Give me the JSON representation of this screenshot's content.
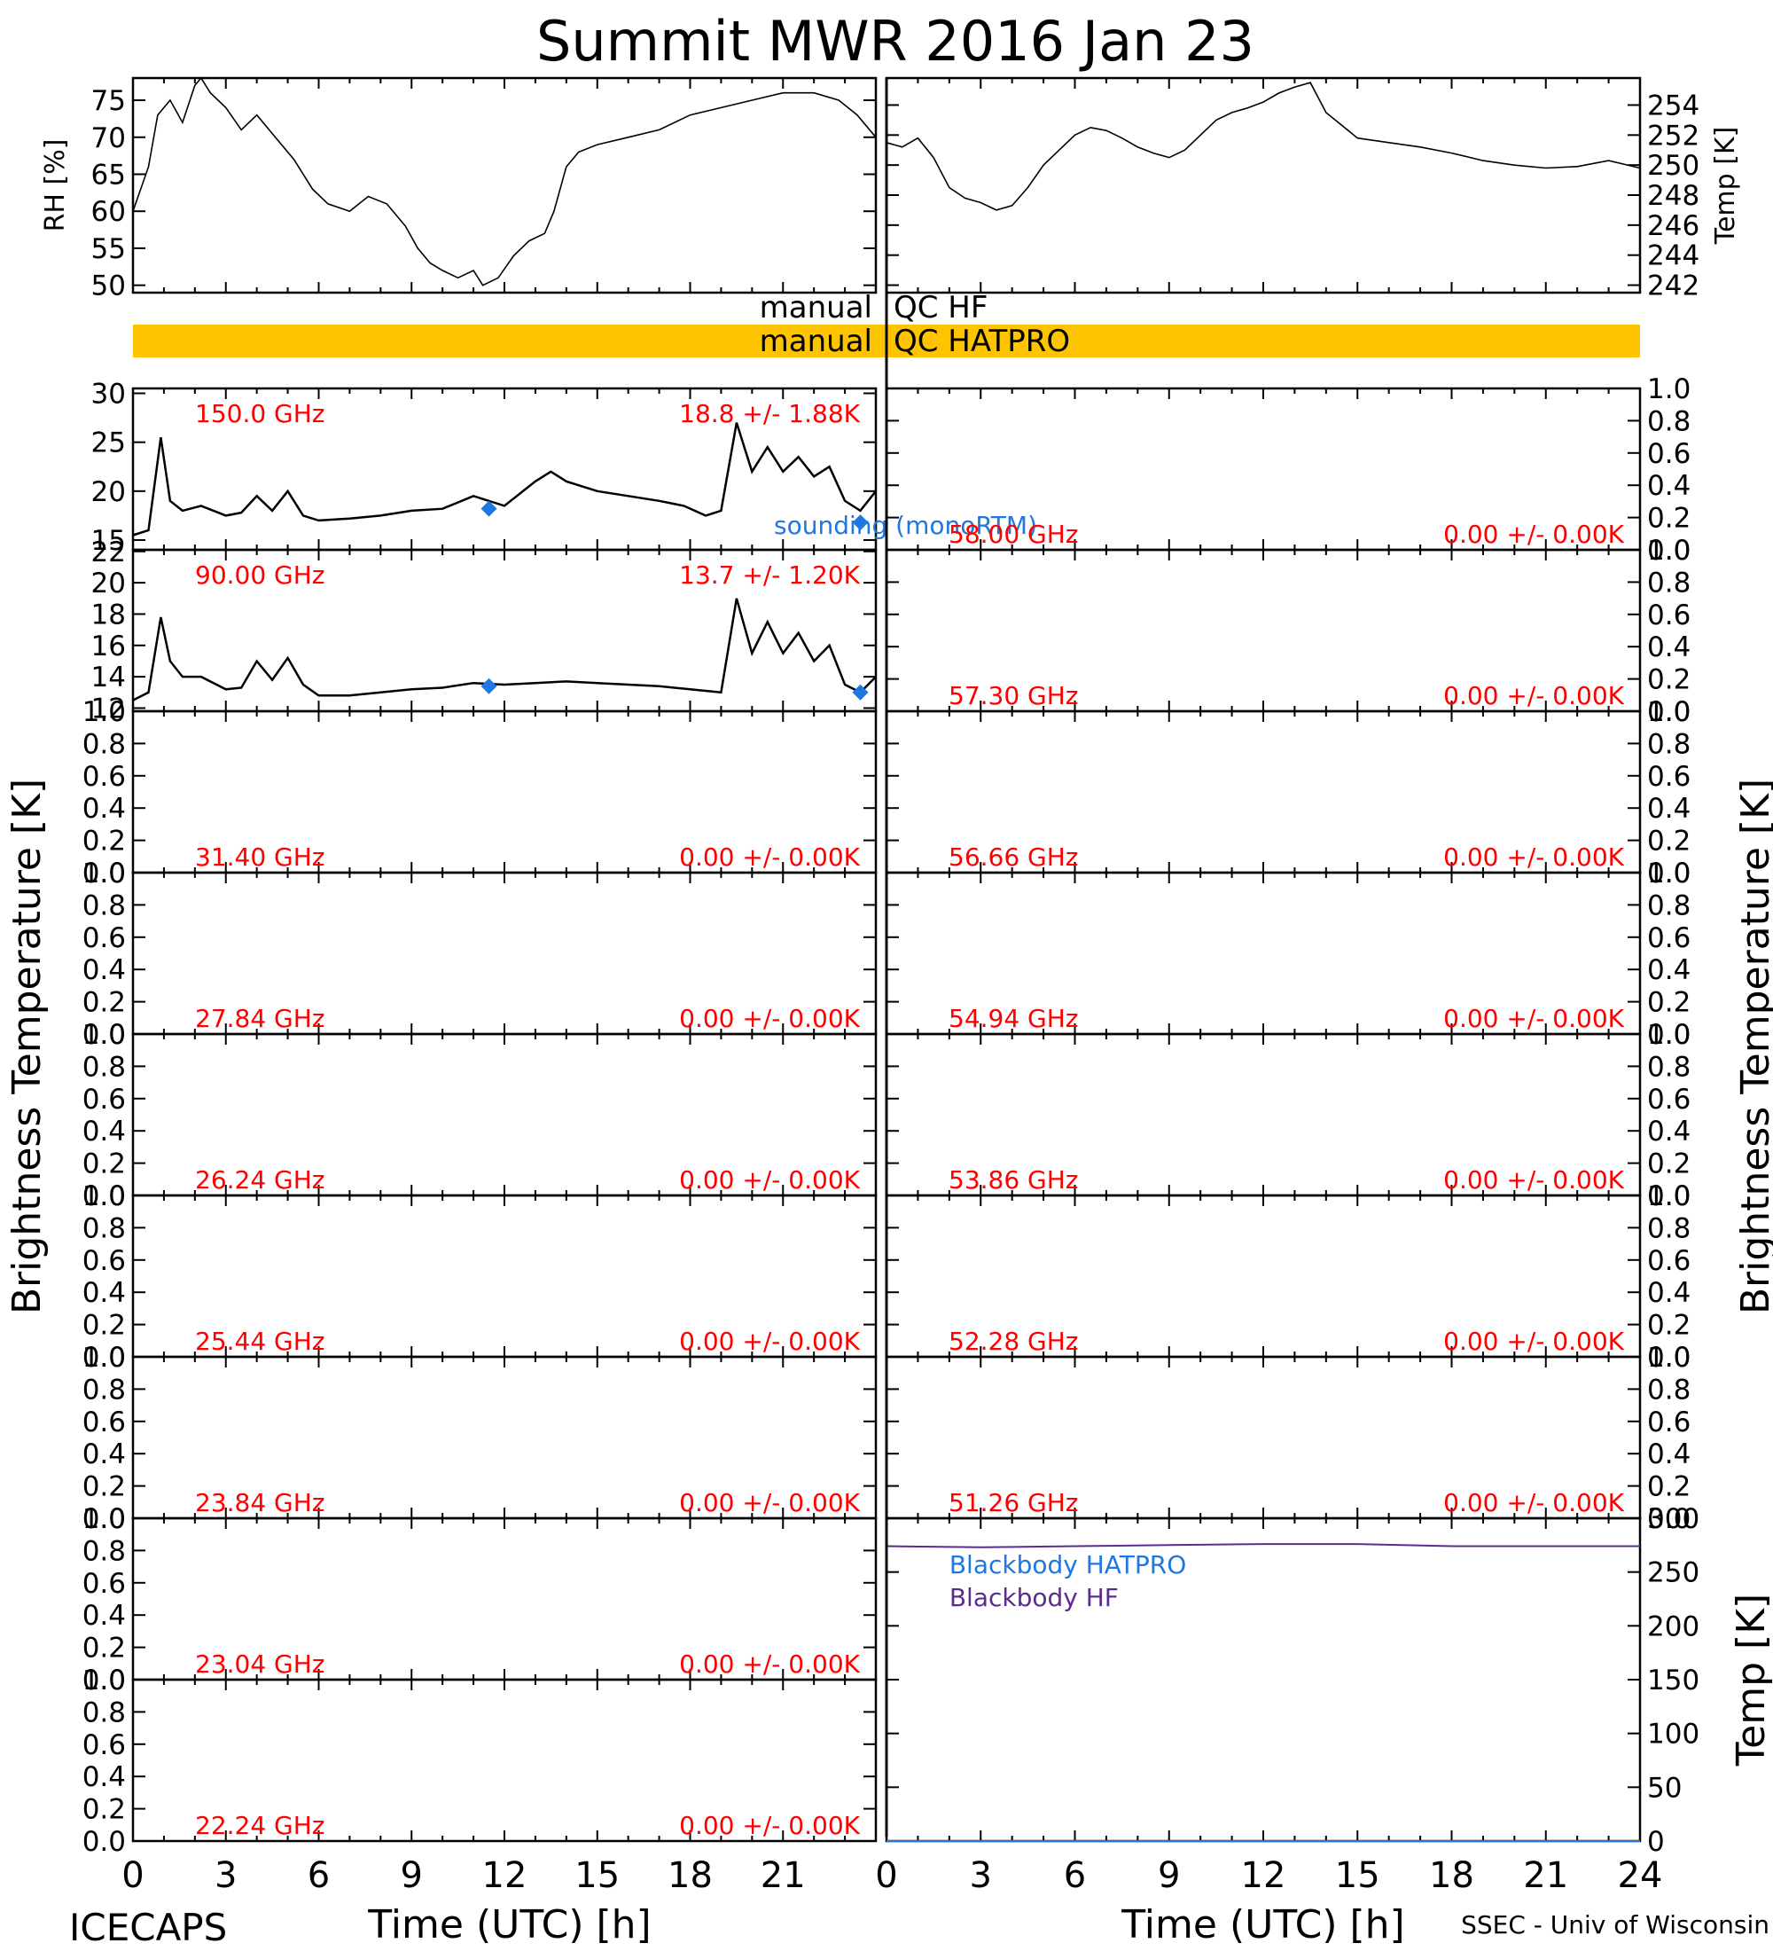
{
  "title": "Summit MWR 2016 Jan 23",
  "footer": {
    "left": "ICECAPS",
    "right": "SSEC - Univ of Wisconsin"
  },
  "xlabel": "Time (UTC) [h]",
  "left_ylabel": "Brightness Temperature [K]",
  "right_ylabel": "Brightness Temperature [K]",
  "qc": {
    "hf_left": "manual",
    "hf_right": "QC HF",
    "hatpro_left": "manual",
    "hatpro_right": "QC HATPRO",
    "hatpro_color": "#FFC400"
  },
  "colors": {
    "label": "#FF0000",
    "sounding": "#1F77E0",
    "bb_hatpro": "#1F77E0",
    "bb_hf": "#5B2C8F",
    "trace": "#000000"
  },
  "chart_data": [
    {
      "id": "rh",
      "type": "line",
      "ylabel": "RH [%]",
      "xlim": [
        0,
        24
      ],
      "ylim": [
        49,
        78
      ],
      "ticks": [
        50,
        55,
        60,
        65,
        70,
        75
      ],
      "x": [
        0,
        0.5,
        0.8,
        1.2,
        1.6,
        2.0,
        2.2,
        2.5,
        3.0,
        3.5,
        4.0,
        4.6,
        5.2,
        5.8,
        6.3,
        7.0,
        7.6,
        8.2,
        8.8,
        9.2,
        9.6,
        10.0,
        10.5,
        11.0,
        11.3,
        11.8,
        12.3,
        12.8,
        13.3,
        13.6,
        14.0,
        14.4,
        15.0,
        16.0,
        17.0,
        18.0,
        19.0,
        20.0,
        21.0,
        22.0,
        22.8,
        23.4,
        24.0
      ],
      "values": [
        60,
        66,
        73,
        75,
        72,
        77,
        78,
        76,
        74,
        71,
        73,
        70,
        67,
        63,
        61,
        60,
        62,
        61,
        58,
        55,
        53,
        52,
        51,
        52,
        50,
        51,
        54,
        56,
        57,
        60,
        66,
        68,
        69,
        70,
        71,
        73,
        74,
        75,
        76,
        76,
        75,
        73,
        70
      ]
    },
    {
      "id": "temp",
      "type": "line",
      "ylabel": "Temp [K]",
      "xlim": [
        0,
        24
      ],
      "ylim": [
        241.5,
        255.8
      ],
      "ticks": [
        242,
        244,
        246,
        248,
        250,
        252,
        254
      ],
      "x": [
        0,
        0.5,
        1.0,
        1.5,
        2.0,
        2.5,
        3.0,
        3.5,
        4.0,
        4.5,
        5.0,
        5.5,
        6.0,
        6.5,
        7.0,
        7.5,
        8.0,
        8.5,
        9.0,
        9.5,
        10.0,
        10.5,
        11.0,
        11.5,
        12.0,
        12.5,
        13.0,
        13.5,
        14.0,
        15.0,
        16.0,
        17.0,
        18.0,
        19.0,
        20.0,
        21.0,
        22.0,
        23.0,
        24.0
      ],
      "values": [
        251.5,
        251.2,
        251.8,
        250.5,
        248.5,
        247.8,
        247.5,
        247.0,
        247.3,
        248.5,
        250.0,
        251.0,
        252.0,
        252.5,
        252.3,
        251.8,
        251.2,
        250.8,
        250.5,
        251.0,
        252.0,
        253.0,
        253.5,
        253.8,
        254.2,
        254.8,
        255.2,
        255.5,
        253.5,
        251.8,
        251.5,
        251.2,
        250.8,
        250.3,
        250.0,
        249.8,
        249.9,
        250.3,
        249.8
      ]
    },
    {
      "id": "f150",
      "type": "line",
      "channel": "150.0 GHz",
      "stat": "18.8 +/- 1.88K",
      "xlim": [
        0,
        24
      ],
      "ylim": [
        14,
        30.5
      ],
      "ticks": [
        15,
        20,
        25,
        30
      ],
      "x": [
        0,
        0.5,
        0.9,
        1.2,
        1.6,
        2.2,
        3.0,
        3.5,
        4.0,
        4.5,
        5.0,
        5.5,
        6.0,
        7.0,
        8.0,
        9.0,
        10.0,
        11.0,
        12.0,
        13.0,
        13.5,
        14.0,
        15.0,
        16.0,
        17.0,
        17.8,
        18.5,
        19.0,
        19.5,
        20.0,
        20.5,
        21.0,
        21.5,
        22.0,
        22.5,
        23.0,
        23.5,
        24.0
      ],
      "values": [
        15.5,
        16,
        25.5,
        19,
        18,
        18.5,
        17.5,
        17.8,
        19.5,
        18,
        20,
        17.5,
        17,
        17.2,
        17.5,
        18,
        18.2,
        19.5,
        18.5,
        21,
        22,
        21,
        20,
        19.5,
        19,
        18.5,
        17.5,
        18,
        27,
        22,
        24.5,
        22,
        23.5,
        21.5,
        22.5,
        19,
        18,
        20
      ],
      "sounding": {
        "label": "sounding (monoRTM)",
        "x": [
          11.5,
          23.5
        ],
        "values": [
          18.2,
          16.8
        ]
      }
    },
    {
      "id": "f90",
      "type": "line",
      "channel": "90.00 GHz",
      "stat": "13.7 +/- 1.20K",
      "xlim": [
        0,
        24
      ],
      "ylim": [
        11.8,
        22.1
      ],
      "ticks": [
        12,
        14,
        16,
        18,
        20,
        22
      ],
      "x": [
        0,
        0.5,
        0.9,
        1.2,
        1.6,
        2.2,
        3.0,
        3.5,
        4.0,
        4.5,
        5.0,
        5.5,
        6.0,
        7.0,
        8.0,
        9.0,
        10.0,
        11.0,
        12.0,
        13.0,
        14.0,
        15.0,
        16.0,
        17.0,
        18.0,
        19.0,
        19.5,
        20.0,
        20.5,
        21.0,
        21.5,
        22.0,
        22.5,
        23.0,
        23.5,
        24.0
      ],
      "values": [
        12.5,
        13,
        17.8,
        15,
        14,
        14,
        13.2,
        13.3,
        15,
        13.8,
        15.2,
        13.5,
        12.8,
        12.8,
        13,
        13.2,
        13.3,
        13.6,
        13.5,
        13.6,
        13.7,
        13.6,
        13.5,
        13.4,
        13.2,
        13,
        19,
        15.5,
        17.5,
        15.5,
        16.8,
        15,
        16,
        13.5,
        13,
        14
      ],
      "sounding": {
        "x": [
          11.5,
          23.5
        ],
        "values": [
          13.4,
          13.0
        ]
      }
    },
    {
      "id": "f3140",
      "type": "line",
      "channel": "31.40 GHz",
      "stat": "0.00 +/- 0.00K",
      "xlim": [
        0,
        24
      ],
      "ylim": [
        0,
        1
      ],
      "ticks": [
        0.0,
        0.2,
        0.4,
        0.6,
        0.8,
        1.0
      ]
    },
    {
      "id": "f2784",
      "type": "line",
      "channel": "27.84 GHz",
      "stat": "0.00 +/- 0.00K",
      "xlim": [
        0,
        24
      ],
      "ylim": [
        0,
        1
      ],
      "ticks": [
        0.0,
        0.2,
        0.4,
        0.6,
        0.8,
        1.0
      ]
    },
    {
      "id": "f2624",
      "type": "line",
      "channel": "26.24 GHz",
      "stat": "0.00 +/- 0.00K",
      "xlim": [
        0,
        24
      ],
      "ylim": [
        0,
        1
      ],
      "ticks": [
        0.0,
        0.2,
        0.4,
        0.6,
        0.8,
        1.0
      ]
    },
    {
      "id": "f2544",
      "type": "line",
      "channel": "25.44 GHz",
      "stat": "0.00 +/- 0.00K",
      "xlim": [
        0,
        24
      ],
      "ylim": [
        0,
        1
      ],
      "ticks": [
        0.0,
        0.2,
        0.4,
        0.6,
        0.8,
        1.0
      ]
    },
    {
      "id": "f2384",
      "type": "line",
      "channel": "23.84 GHz",
      "stat": "0.00 +/- 0.00K",
      "xlim": [
        0,
        24
      ],
      "ylim": [
        0,
        1
      ],
      "ticks": [
        0.0,
        0.2,
        0.4,
        0.6,
        0.8,
        1.0
      ]
    },
    {
      "id": "f2304",
      "type": "line",
      "channel": "23.04 GHz",
      "stat": "0.00 +/- 0.00K",
      "xlim": [
        0,
        24
      ],
      "ylim": [
        0,
        1
      ],
      "ticks": [
        0.0,
        0.2,
        0.4,
        0.6,
        0.8,
        1.0
      ]
    },
    {
      "id": "f2224",
      "type": "line",
      "channel": "22.24 GHz",
      "stat": "0.00 +/- 0.00K",
      "xlim": [
        0,
        24
      ],
      "ylim": [
        0,
        1
      ],
      "ticks": [
        0.0,
        0.2,
        0.4,
        0.6,
        0.8,
        1.0
      ]
    },
    {
      "id": "f5800",
      "type": "line",
      "channel": "58.00 GHz",
      "stat": "0.00 +/- 0.00K",
      "xlim": [
        0,
        24
      ],
      "ylim": [
        0,
        1
      ],
      "ticks": [
        0.0,
        0.2,
        0.4,
        0.6,
        0.8,
        1.0
      ]
    },
    {
      "id": "f5730",
      "type": "line",
      "channel": "57.30 GHz",
      "stat": "0.00 +/- 0.00K",
      "xlim": [
        0,
        24
      ],
      "ylim": [
        0,
        1
      ],
      "ticks": [
        0.0,
        0.2,
        0.4,
        0.6,
        0.8,
        1.0
      ]
    },
    {
      "id": "f5666",
      "type": "line",
      "channel": "56.66 GHz",
      "stat": "0.00 +/- 0.00K",
      "xlim": [
        0,
        24
      ],
      "ylim": [
        0,
        1
      ],
      "ticks": [
        0.0,
        0.2,
        0.4,
        0.6,
        0.8,
        1.0
      ]
    },
    {
      "id": "f5494",
      "type": "line",
      "channel": "54.94 GHz",
      "stat": "0.00 +/- 0.00K",
      "xlim": [
        0,
        24
      ],
      "ylim": [
        0,
        1
      ],
      "ticks": [
        0.0,
        0.2,
        0.4,
        0.6,
        0.8,
        1.0
      ]
    },
    {
      "id": "f5386",
      "type": "line",
      "channel": "53.86 GHz",
      "stat": "0.00 +/- 0.00K",
      "xlim": [
        0,
        24
      ],
      "ylim": [
        0,
        1
      ],
      "ticks": [
        0.0,
        0.2,
        0.4,
        0.6,
        0.8,
        1.0
      ]
    },
    {
      "id": "f5228",
      "type": "line",
      "channel": "52.28 GHz",
      "stat": "0.00 +/- 0.00K",
      "xlim": [
        0,
        24
      ],
      "ylim": [
        0,
        1
      ],
      "ticks": [
        0.0,
        0.2,
        0.4,
        0.6,
        0.8,
        1.0
      ]
    },
    {
      "id": "f5126",
      "type": "line",
      "channel": "51.26 GHz",
      "stat": "0.00 +/- 0.00K",
      "xlim": [
        0,
        24
      ],
      "ylim": [
        0,
        1
      ],
      "ticks": [
        0.0,
        0.2,
        0.4,
        0.6,
        0.8,
        1.0
      ]
    },
    {
      "id": "blackbody",
      "type": "line",
      "ylabel": "Temp [K]",
      "xlim": [
        0,
        24
      ],
      "ylim": [
        0,
        300
      ],
      "ticks": [
        0,
        50,
        100,
        150,
        200,
        250,
        300
      ],
      "series": [
        {
          "name": "Blackbody HATPRO",
          "x": [
            0,
            24
          ],
          "values": [
            0,
            0
          ]
        },
        {
          "name": "Blackbody HF",
          "x": [
            0,
            3,
            6,
            9,
            12,
            15,
            18,
            21,
            24
          ],
          "values": [
            274,
            273,
            274,
            275,
            276,
            276,
            274,
            274,
            274
          ]
        }
      ]
    }
  ],
  "xticks_left": [
    "0",
    "3",
    "6",
    "9",
    "12",
    "15",
    "18",
    "21"
  ],
  "xticks_right": [
    "0",
    "3",
    "6",
    "9",
    "12",
    "15",
    "18",
    "21",
    "24"
  ]
}
